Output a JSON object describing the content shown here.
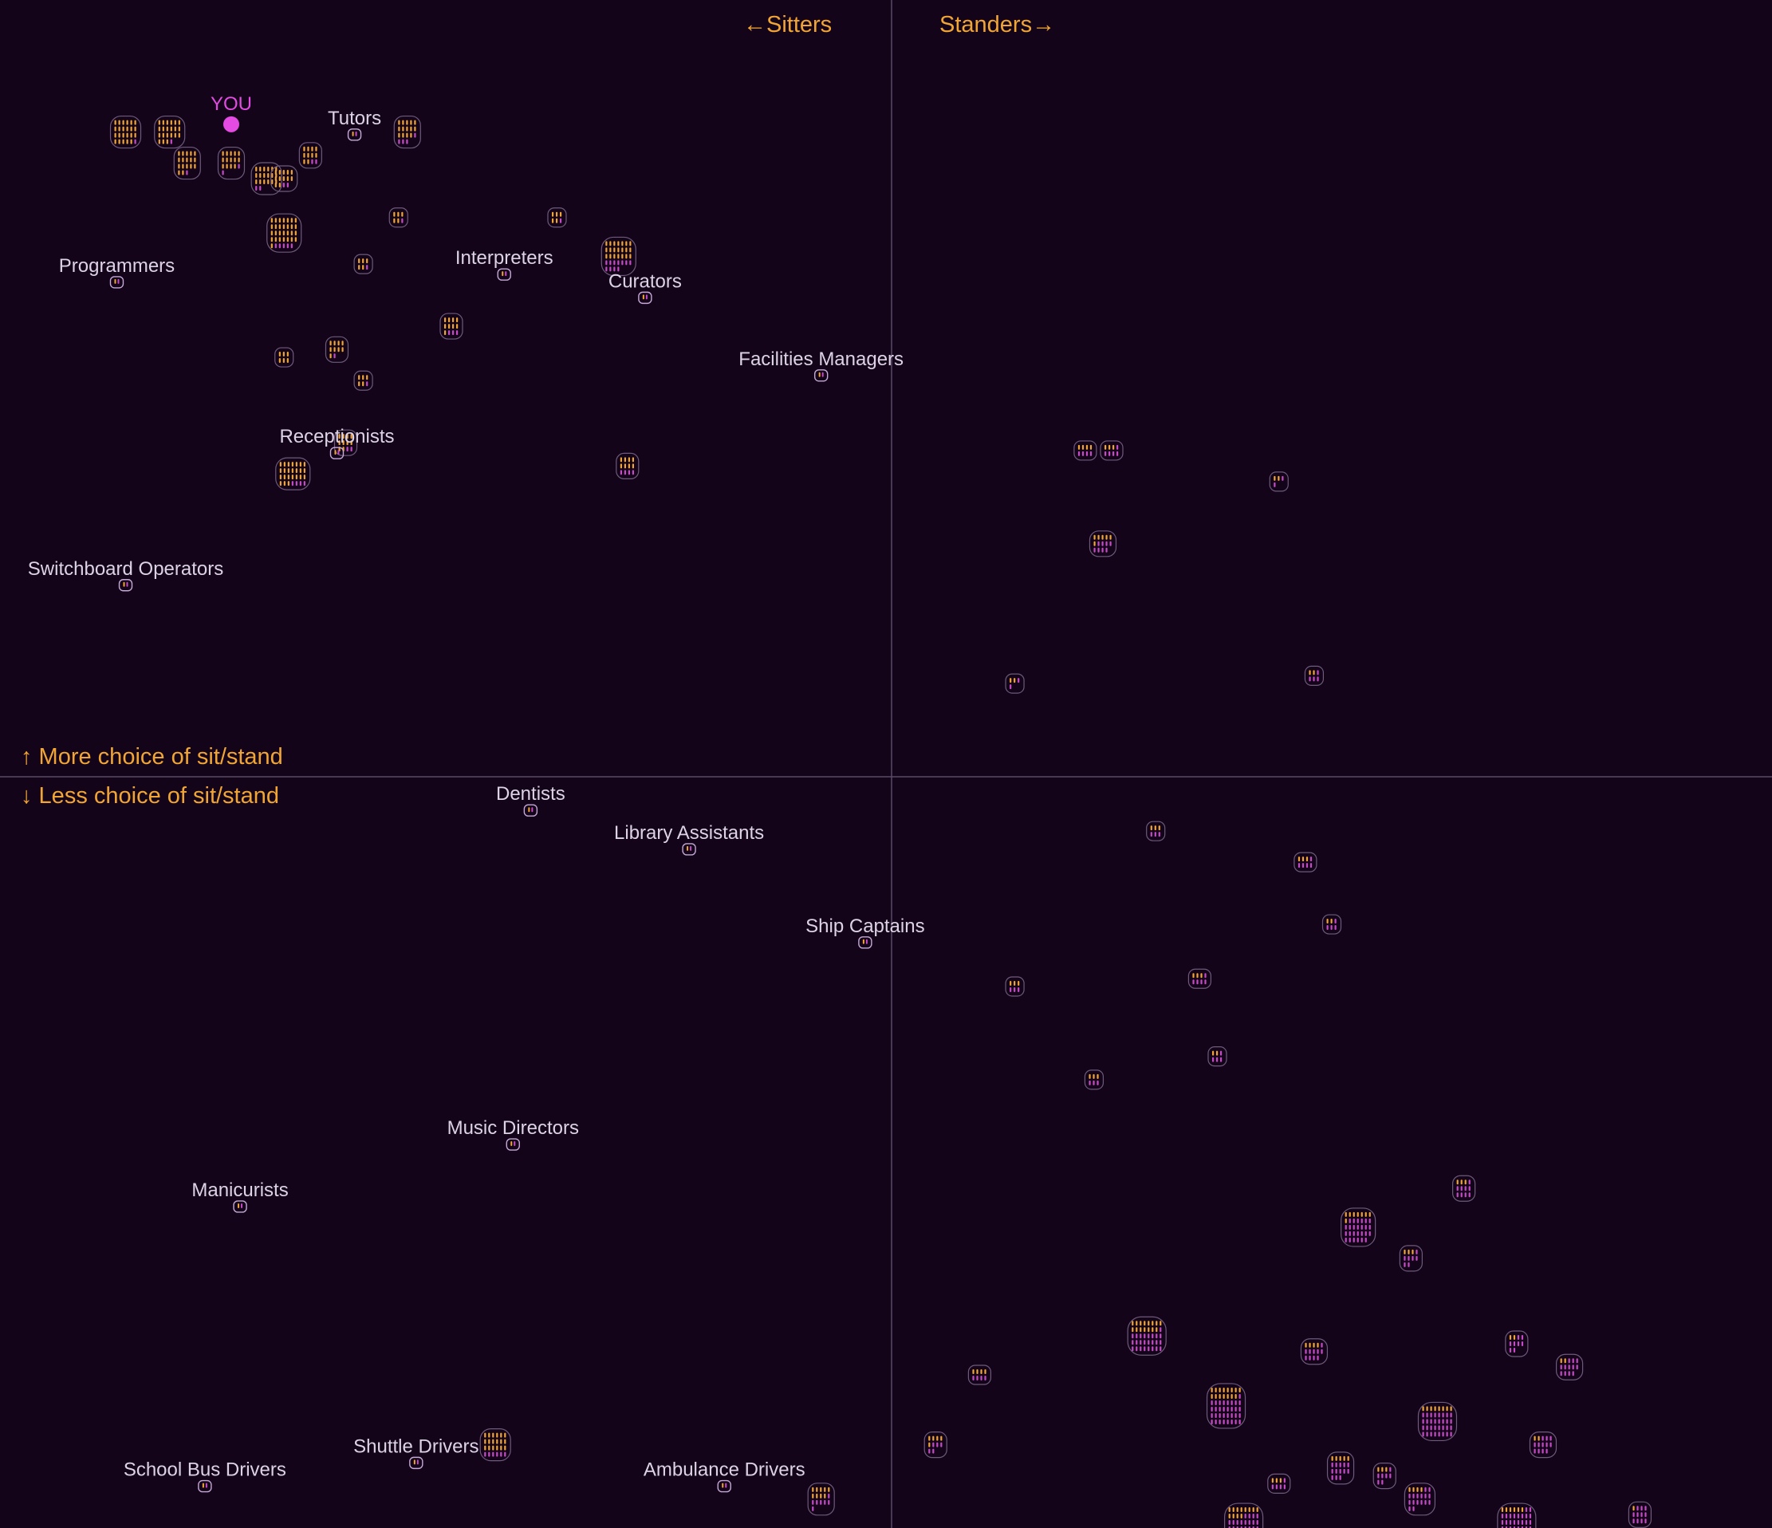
{
  "colors": {
    "background": "#13041a",
    "axis_line": "#5a4a66",
    "axis_text": "#f0a535",
    "sitter_person": "#f0a535",
    "stander_person": "#c74ac7",
    "cluster_outline": "#6e5a7a",
    "highlight_outline": "#c5a9d6",
    "you_marker": "#e34be3",
    "job_label": "#ddd3e6"
  },
  "axis_words": {
    "left": "←Sitters",
    "right": "Standers→",
    "up": "↑ More choice of sit/stand",
    "down": "↓ Less choice of sit/stand"
  },
  "you_label": "YOU",
  "chart_data": {
    "type": "scatter",
    "title": "",
    "xlabel": "",
    "ylabel": "",
    "x_axis": {
      "negative": "←Sitters",
      "positive": "Standers→"
    },
    "y_axis": {
      "positive": "↑ More choice of sit/stand",
      "negative": "↓ Less choice of sit/stand"
    },
    "xlim": [
      -1,
      1
    ],
    "ylim": [
      -1,
      1
    ],
    "grid": false,
    "you": {
      "x": -0.75,
      "y": 0.84
    },
    "labeled_points": [
      {
        "label": "Tutors",
        "x": -0.61,
        "y": 0.84
      },
      {
        "label": "Programmers",
        "x": -0.88,
        "y": 0.65
      },
      {
        "label": "Interpreters",
        "x": -0.44,
        "y": 0.66
      },
      {
        "label": "Curators",
        "x": -0.28,
        "y": 0.63
      },
      {
        "label": "Facilities Managers",
        "x": -0.08,
        "y": 0.53
      },
      {
        "label": "Receptionists",
        "x": -0.63,
        "y": 0.43
      },
      {
        "label": "Switchboard Operators",
        "x": -0.87,
        "y": 0.26
      },
      {
        "label": "Dentists",
        "x": -0.41,
        "y": -0.03
      },
      {
        "label": "Library Assistants",
        "x": -0.23,
        "y": -0.08
      },
      {
        "label": "Ship Captains",
        "x": -0.03,
        "y": -0.2
      },
      {
        "label": "Music Directors",
        "x": -0.43,
        "y": -0.46
      },
      {
        "label": "Manicurists",
        "x": -0.74,
        "y": -0.54
      },
      {
        "label": "School Bus Drivers",
        "x": -0.78,
        "y": -0.9
      },
      {
        "label": "Shuttle Drivers",
        "x": -0.54,
        "y": -0.87
      },
      {
        "label": "Ambulance Drivers",
        "x": -0.19,
        "y": -0.9
      }
    ],
    "clusters": [
      {
        "x": -0.87,
        "y": 0.83,
        "n": 24
      },
      {
        "x": -0.82,
        "y": 0.83,
        "n": 22
      },
      {
        "x": -0.8,
        "y": 0.79,
        "n": 18
      },
      {
        "x": -0.75,
        "y": 0.79,
        "n": 16
      },
      {
        "x": -0.71,
        "y": 0.77,
        "n": 20
      },
      {
        "x": -0.69,
        "y": 0.77,
        "n": 14
      },
      {
        "x": -0.66,
        "y": 0.8,
        "n": 12
      },
      {
        "x": -0.55,
        "y": 0.83,
        "n": 18
      },
      {
        "x": -0.69,
        "y": 0.7,
        "n": 34
      },
      {
        "x": -0.31,
        "y": 0.67,
        "n": 32
      },
      {
        "x": -0.68,
        "y": 0.39,
        "n": 28
      },
      {
        "x": -0.62,
        "y": 0.43,
        "n": 12
      },
      {
        "x": -0.3,
        "y": 0.4,
        "n": 12
      },
      {
        "x": -0.5,
        "y": 0.58,
        "n": 12
      },
      {
        "x": -0.63,
        "y": 0.55,
        "n": 10
      },
      {
        "x": -0.6,
        "y": 0.51,
        "n": 6
      },
      {
        "x": -0.69,
        "y": 0.54,
        "n": 6
      },
      {
        "x": -0.6,
        "y": 0.66,
        "n": 6
      },
      {
        "x": -0.38,
        "y": 0.72,
        "n": 6
      },
      {
        "x": -0.56,
        "y": 0.72,
        "n": 6
      },
      {
        "x": 0.22,
        "y": 0.42,
        "n": 8
      },
      {
        "x": 0.25,
        "y": 0.42,
        "n": 8
      },
      {
        "x": 0.24,
        "y": 0.3,
        "n": 14
      },
      {
        "x": 0.48,
        "y": 0.13,
        "n": 6
      },
      {
        "x": 0.14,
        "y": 0.12,
        "n": 4
      },
      {
        "x": 0.44,
        "y": 0.38,
        "n": 4
      },
      {
        "x": 0.3,
        "y": -0.07,
        "n": 6
      },
      {
        "x": 0.47,
        "y": -0.11,
        "n": 8
      },
      {
        "x": 0.5,
        "y": -0.19,
        "n": 6
      },
      {
        "x": 0.35,
        "y": -0.26,
        "n": 8
      },
      {
        "x": 0.14,
        "y": -0.27,
        "n": 6
      },
      {
        "x": 0.23,
        "y": -0.39,
        "n": 6
      },
      {
        "x": 0.37,
        "y": -0.36,
        "n": 6
      },
      {
        "x": 0.53,
        "y": -0.58,
        "n": 34
      },
      {
        "x": 0.65,
        "y": -0.53,
        "n": 12
      },
      {
        "x": 0.29,
        "y": -0.72,
        "n": 40
      },
      {
        "x": 0.59,
        "y": -0.62,
        "n": 10
      },
      {
        "x": 0.71,
        "y": -0.73,
        "n": 10
      },
      {
        "x": 0.38,
        "y": -0.81,
        "n": 48
      },
      {
        "x": 0.62,
        "y": -0.83,
        "n": 40
      },
      {
        "x": 0.6,
        "y": -0.93,
        "n": 20
      },
      {
        "x": 0.77,
        "y": -0.76,
        "n": 14
      },
      {
        "x": 0.71,
        "y": -0.96,
        "n": 40
      },
      {
        "x": 0.4,
        "y": -0.96,
        "n": 40
      },
      {
        "x": 0.74,
        "y": -0.86,
        "n": 14
      },
      {
        "x": 0.85,
        "y": -0.95,
        "n": 12
      },
      {
        "x": -0.45,
        "y": -0.86,
        "n": 24
      },
      {
        "x": -0.08,
        "y": -0.93,
        "n": 16
      },
      {
        "x": 0.05,
        "y": -0.86,
        "n": 10
      },
      {
        "x": 0.1,
        "y": -0.77,
        "n": 8
      },
      {
        "x": 0.51,
        "y": -0.89,
        "n": 18
      },
      {
        "x": 0.56,
        "y": -0.9,
        "n": 10
      },
      {
        "x": 0.44,
        "y": -0.91,
        "n": 8
      },
      {
        "x": 0.48,
        "y": -0.74,
        "n": 14
      }
    ]
  }
}
